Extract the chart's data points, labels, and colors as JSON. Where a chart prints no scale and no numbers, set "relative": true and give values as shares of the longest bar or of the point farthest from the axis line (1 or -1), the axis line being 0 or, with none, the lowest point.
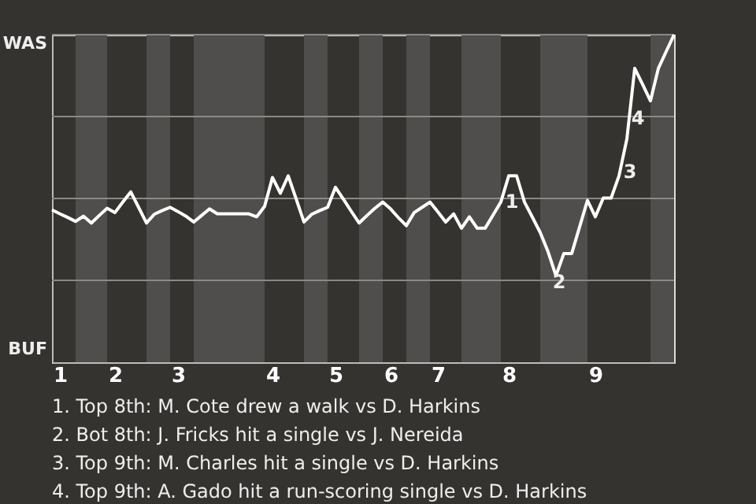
{
  "chart_data": {
    "type": "line",
    "relative": true,
    "categories": [
      null,
      "1",
      null,
      null,
      null,
      null,
      null,
      null,
      "2",
      null,
      null,
      null,
      null,
      null,
      null,
      null,
      "3",
      null,
      null,
      null,
      null,
      null,
      null,
      null,
      null,
      null,
      null,
      null,
      "4",
      null,
      null,
      null,
      null,
      null,
      null,
      null,
      "5",
      null,
      null,
      null,
      null,
      null,
      null,
      "6",
      null,
      null,
      null,
      null,
      null,
      "7",
      null,
      null,
      null,
      null,
      null,
      null,
      null,
      null,
      "8",
      null,
      null,
      null,
      null,
      null,
      null,
      null,
      null,
      null,
      null,
      "9",
      null,
      null,
      null,
      null,
      null,
      null,
      null,
      null,
      null,
      null
    ],
    "series": [
      {
        "color": "#ffffff",
        "values": [
          0.465,
          0.453,
          0.442,
          0.43,
          0.446,
          0.425,
          0.448,
          0.47,
          0.457,
          0.489,
          0.52,
          0.473,
          0.425,
          0.452,
          0.463,
          0.473,
          0.46,
          0.446,
          0.428,
          0.448,
          0.468,
          0.453,
          0.453,
          0.453,
          0.453,
          0.453,
          0.444,
          0.476,
          0.564,
          0.516,
          0.569,
          0.499,
          0.428,
          0.452,
          0.463,
          0.473,
          0.534,
          0.498,
          0.461,
          0.425,
          0.448,
          0.47,
          0.489,
          0.468,
          0.441,
          0.417,
          0.457,
          0.473,
          0.489,
          0.459,
          0.428,
          0.453,
          0.409,
          0.444,
          0.409,
          0.409,
          0.449,
          0.489,
          0.569,
          0.569,
          0.489,
          0.443,
          0.396,
          0.337,
          0.264,
          0.332,
          0.332,
          0.413,
          0.494,
          0.444,
          0.501,
          0.501,
          0.569,
          0.681,
          0.897,
          0.848,
          0.798,
          0.897,
          0.949,
          1
        ]
      }
    ],
    "marker": "none",
    "ref_lines": [
      {
        "axis": "y",
        "value": 0.25,
        "color": "#8a8985"
      },
      {
        "axis": "y",
        "value": 0.5,
        "color": "#8a8985"
      },
      {
        "axis": "y",
        "value": 0.75,
        "color": "#8a8985"
      },
      {
        "axis": "y",
        "value": 1,
        "color": "#8a8985"
      }
    ],
    "annotations": [
      "WAS",
      "BUF",
      "1",
      "2",
      "3",
      "4",
      "1. Top 8th: M. Cote drew a walk vs D. Harkins",
      "2. Bot 8th: J. Fricks hit a single vs J. Nereida",
      "3. Top 9th: M. Charles hit a single vs D. Harkins",
      "4. Top 9th: A. Gado hit a run-scoring single vs D. Harkins"
    ]
  }
}
